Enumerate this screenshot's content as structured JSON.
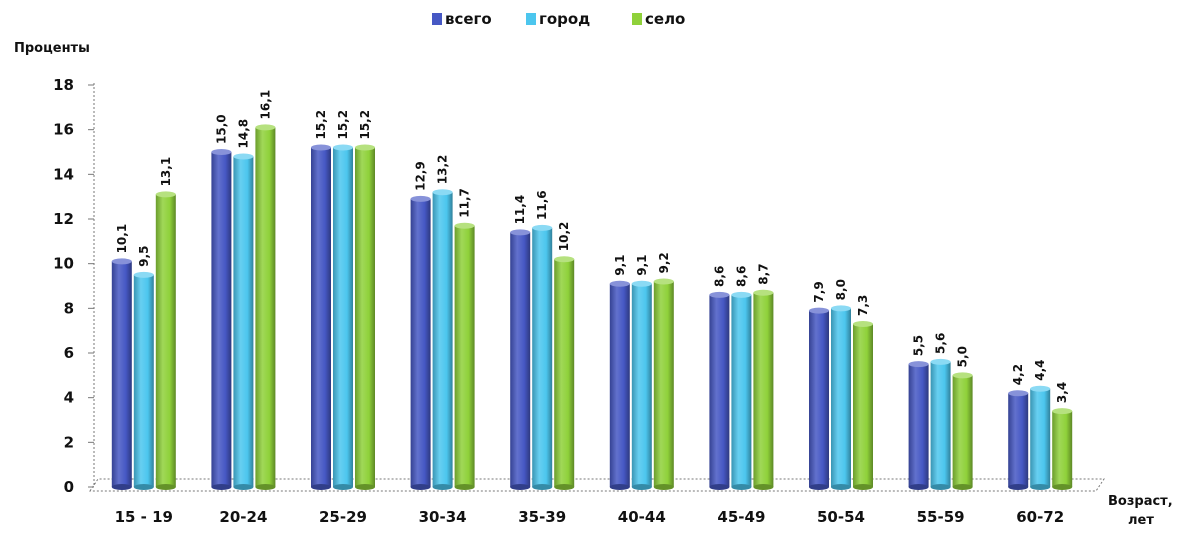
{
  "chart_data": {
    "type": "bar",
    "title": "",
    "ylabel": "Проценты",
    "xlabel_line1": "Возраст,",
    "xlabel_line2": "лет",
    "ylim": [
      0,
      18
    ],
    "yticks": [
      "0",
      "2",
      "4",
      "6",
      "8",
      "10",
      "12",
      "14",
      "16",
      "18"
    ],
    "grid": false,
    "legend_position": "top",
    "categories": [
      "15 - 19",
      "20-24",
      "25-29",
      "30-34",
      "35-39",
      "40-44",
      "45-49",
      "50-54",
      "55-59",
      "60-72"
    ],
    "series": [
      {
        "name": "всего",
        "color": "#4658c4",
        "values": [
          10.1,
          15.0,
          15.2,
          12.9,
          11.4,
          9.1,
          8.6,
          7.9,
          5.5,
          4.2
        ],
        "labels": [
          "10,1",
          "15,0",
          "15,2",
          "12,9",
          "11,4",
          "9,1",
          "8,6",
          "7,9",
          "5,5",
          "4,2"
        ]
      },
      {
        "name": "город",
        "color": "#4cc6ee",
        "values": [
          9.5,
          14.8,
          15.2,
          13.2,
          11.6,
          9.1,
          8.6,
          8.0,
          5.6,
          4.4
        ],
        "labels": [
          "9,5",
          "14,8",
          "15,2",
          "13,2",
          "11,6",
          "9,1",
          "8,6",
          "8,0",
          "5,6",
          "4,4"
        ]
      },
      {
        "name": "село",
        "color": "#8fd13a",
        "values": [
          13.1,
          16.1,
          15.2,
          11.7,
          10.2,
          9.2,
          8.7,
          7.3,
          5.0,
          3.4
        ],
        "labels": [
          "13,1",
          "16,1",
          "15,2",
          "11,7",
          "10,2",
          "9,2",
          "8,7",
          "7,3",
          "5,0",
          "3,4"
        ]
      }
    ]
  }
}
